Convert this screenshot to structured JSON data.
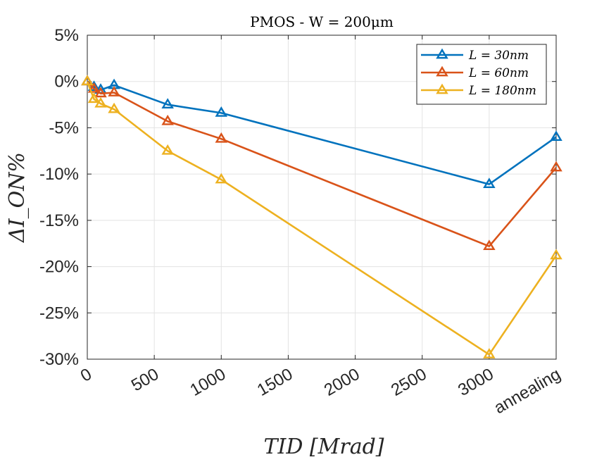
{
  "chart_data": {
    "type": "line",
    "title": "PMOS - W = 200μm",
    "xlabel": "TID [Mrad]",
    "ylabel": "ΔI_ON%",
    "xlim": [
      0,
      3500
    ],
    "ylim": [
      -30,
      5
    ],
    "xticks": [
      {
        "value": 0,
        "label": "0"
      },
      {
        "value": 500,
        "label": "500"
      },
      {
        "value": 1000,
        "label": "1000"
      },
      {
        "value": 1500,
        "label": "1500"
      },
      {
        "value": 2000,
        "label": "2000"
      },
      {
        "value": 2500,
        "label": "2500"
      },
      {
        "value": 3000,
        "label": "3000"
      },
      {
        "value": 3500,
        "label": "annealing"
      }
    ],
    "yticks": [
      {
        "value": 5,
        "label": "5%"
      },
      {
        "value": 0,
        "label": "0%"
      },
      {
        "value": -5,
        "label": "-5%"
      },
      {
        "value": -10,
        "label": "-10%"
      },
      {
        "value": -15,
        "label": "-15%"
      },
      {
        "value": -20,
        "label": "-20%"
      },
      {
        "value": -25,
        "label": "-25%"
      },
      {
        "value": -30,
        "label": "-30%"
      }
    ],
    "grid": true,
    "legend_position": "top-right",
    "x": [
      0,
      50,
      100,
      200,
      600,
      1000,
      3000,
      3500
    ],
    "series": [
      {
        "name": "L = 30nm",
        "color": "#0072BD",
        "marker": "triangle",
        "values": [
          0,
          -0.6,
          -0.9,
          -0.4,
          -2.5,
          -3.4,
          -11.1,
          -6.0
        ]
      },
      {
        "name": "L = 60nm",
        "color": "#D95319",
        "marker": "triangle",
        "values": [
          0,
          -0.8,
          -1.3,
          -1.2,
          -4.3,
          -6.2,
          -17.8,
          -9.3
        ]
      },
      {
        "name": "L = 180nm",
        "color": "#EDB120",
        "marker": "triangle",
        "values": [
          0,
          -1.9,
          -2.4,
          -3.0,
          -7.5,
          -10.6,
          -29.5,
          -18.8
        ]
      }
    ]
  }
}
